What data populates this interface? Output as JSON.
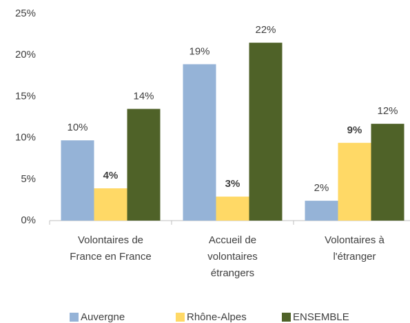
{
  "chart_data": {
    "type": "bar",
    "categories": [
      [
        "Volontaires de",
        "France en France"
      ],
      [
        "Accueil de",
        "volontaires",
        "étrangers"
      ],
      [
        "Volontaires à",
        "l'étranger"
      ]
    ],
    "series": [
      {
        "name": "Auvergne",
        "color": "#95b3d7",
        "values": [
          9.7,
          18.9,
          2.4
        ],
        "value_labels": [
          "10%",
          "19%",
          "2%"
        ]
      },
      {
        "name": "Rhône-Alpes",
        "color": "#ffd966",
        "values": [
          3.9,
          2.9,
          9.4
        ],
        "value_labels": [
          "4%",
          "3%",
          "9%"
        ]
      },
      {
        "name": "ENSEMBLE",
        "color": "#4f6228",
        "values": [
          13.5,
          21.5,
          11.7
        ],
        "value_labels": [
          "14%",
          "22%",
          "12%"
        ]
      }
    ],
    "ylim": [
      0,
      25
    ],
    "yticks": [
      {
        "value": 0,
        "label": "0%"
      },
      {
        "value": 5,
        "label": "5%"
      },
      {
        "value": 10,
        "label": "10%"
      },
      {
        "value": 15,
        "label": "15%"
      },
      {
        "value": 20,
        "label": "20%"
      },
      {
        "value": 25,
        "label": "25%"
      }
    ],
    "grid": false,
    "legend": "bottom"
  }
}
